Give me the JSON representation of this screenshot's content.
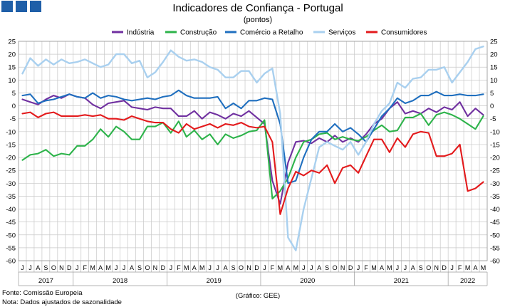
{
  "title": "Indicadores de Confiança - Portugal",
  "subtitle": "(pontos)",
  "source": "Fonte: Comissão Europeia",
  "note": "Nota: Dados ajustados de sazonalidade",
  "credit": "(Gráfico: GEE)",
  "logo_color": "#1f5fa8",
  "chart_data": {
    "type": "line",
    "ylim": [
      -60,
      25
    ],
    "ytick_step": 5,
    "grid": true,
    "legend_position": "top",
    "months": [
      "J",
      "J",
      "A",
      "S",
      "O",
      "N",
      "D",
      "J",
      "F",
      "M",
      "A",
      "M",
      "J",
      "J",
      "A",
      "S",
      "O",
      "N",
      "D",
      "J",
      "F",
      "M",
      "A",
      "M",
      "J",
      "J",
      "A",
      "S",
      "O",
      "N",
      "D",
      "J",
      "F",
      "M",
      "A",
      "M",
      "J",
      "J",
      "A",
      "S",
      "O",
      "N",
      "D",
      "J",
      "F",
      "M",
      "A",
      "M",
      "J",
      "J",
      "A",
      "S",
      "O",
      "N",
      "D",
      "J",
      "F",
      "M",
      "A",
      "M"
    ],
    "years": [
      {
        "label": "2017",
        "start": 0,
        "end": 6
      },
      {
        "label": "2018",
        "start": 7,
        "end": 18
      },
      {
        "label": "2019",
        "start": 19,
        "end": 30
      },
      {
        "label": "2020",
        "start": 31,
        "end": 42
      },
      {
        "label": "2021",
        "start": 43,
        "end": 54
      },
      {
        "label": "2022",
        "start": 55,
        "end": 59
      }
    ],
    "series": [
      {
        "name": "Indústria",
        "color": "#7030a0",
        "values": [
          2.5,
          1.5,
          0.5,
          2.5,
          4,
          3,
          4.5,
          3.5,
          3,
          0.5,
          -1,
          1,
          1.5,
          2,
          -0.5,
          -1,
          -1.5,
          -0.5,
          -1,
          -1,
          -4,
          -4,
          -2,
          -5,
          -2.5,
          -3.5,
          -5,
          -3,
          -4,
          -2,
          -4.5,
          -7,
          -29,
          -38,
          -22,
          -14,
          -13.5,
          -14.5,
          -12.5,
          -14,
          -11.5,
          -14,
          -12.5,
          -14,
          -11,
          -7,
          -5,
          -1,
          1.5,
          -3,
          -2,
          -3,
          -1,
          -2.5,
          -0.5,
          -1.5,
          1.5,
          -4,
          -1,
          -3.5
        ]
      },
      {
        "name": "Construção",
        "color": "#2db34a",
        "values": [
          -21,
          -19,
          -18.5,
          -17,
          -19.5,
          -18.5,
          -19,
          -15.5,
          -15.5,
          -13,
          -9,
          -12,
          -8,
          -10,
          -13,
          -13,
          -8,
          -8,
          -6.5,
          -10.5,
          -6,
          -12,
          -9.5,
          -13,
          -11,
          -15,
          -11,
          -12.5,
          -11.5,
          -10,
          -9.5,
          -5.5,
          -36,
          -33,
          -28,
          -20,
          -14,
          -13,
          -11,
          -10.5,
          -13,
          -12,
          -13,
          -13.5,
          -12,
          -9.5,
          -7.5,
          -10,
          -9.5,
          -4.5,
          -4.5,
          -3,
          -7.5,
          -3.5,
          -2.5,
          -3.5,
          -5,
          -7,
          -9,
          -4
        ]
      },
      {
        "name": "Comércio a Retalho",
        "color": "#1f6fbf",
        "values": [
          4,
          4.5,
          1,
          2,
          2.5,
          3.5,
          4.5,
          3.5,
          3,
          5,
          3,
          4,
          3.5,
          2.5,
          2,
          2.5,
          3,
          2.5,
          3.5,
          4,
          6,
          4,
          3,
          3,
          3,
          3.5,
          -1,
          1,
          -1,
          2,
          2,
          3,
          2.5,
          -7,
          -30,
          -29,
          -20,
          -13,
          -10,
          -10,
          -7,
          -10,
          -8.5,
          -11,
          -14,
          -9,
          -4,
          -1,
          3,
          1,
          2,
          4,
          4,
          5.5,
          4,
          4,
          4.5,
          4,
          4,
          4.5
        ]
      },
      {
        "name": "Serviços",
        "color": "#a9d0ef",
        "values": [
          12.5,
          18.5,
          15.5,
          18,
          16,
          18,
          16.5,
          17,
          18,
          16.5,
          15,
          16,
          20,
          20,
          16.5,
          17.5,
          11,
          13,
          17,
          21.5,
          19,
          17.5,
          18,
          17,
          15,
          14,
          11,
          11,
          13.5,
          13.5,
          9,
          12.5,
          14.5,
          -3,
          -51,
          -56,
          -40,
          -28,
          -16,
          -14,
          -15.5,
          -17,
          -14,
          -19,
          -14,
          -7,
          -2,
          1,
          9,
          7,
          10.5,
          11,
          14,
          14,
          15,
          9,
          13,
          17,
          22,
          23
        ]
      },
      {
        "name": "Consumidores",
        "color": "#e31a1c",
        "values": [
          -3,
          -2.5,
          -4.5,
          -3,
          -2.5,
          -4,
          -4,
          -4,
          -3.5,
          -4,
          -3.5,
          -5,
          -5,
          -5.5,
          -4,
          -5,
          -6,
          -6.5,
          -6.5,
          -9,
          -10.5,
          -7,
          -9,
          -8,
          -7,
          -8.5,
          -7,
          -7.5,
          -6.5,
          -8,
          -8.5,
          -8,
          -14,
          -42,
          -32,
          -25.5,
          -27,
          -25,
          -26,
          -23,
          -30,
          -24,
          -23,
          -26,
          -19.5,
          -13,
          -13,
          -18,
          -12.5,
          -16,
          -11,
          -10,
          -10.5,
          -19.5,
          -19.5,
          -18.5,
          -15,
          -33,
          -32,
          -29.5
        ]
      }
    ]
  }
}
